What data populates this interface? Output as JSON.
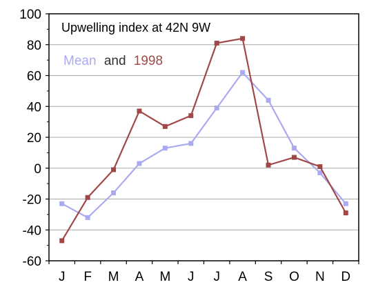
{
  "chart_data": {
    "type": "line",
    "title": "Upwelling index at 42N 9W",
    "legend_prefix": "Mean",
    "legend_joiner": "and",
    "legend_suffix": "1998",
    "legend_placement": "top-left",
    "xlabel": "",
    "ylabel": "",
    "categories": [
      "J",
      "F",
      "M",
      "A",
      "M",
      "J",
      "J",
      "A",
      "S",
      "O",
      "N",
      "D"
    ],
    "ylim": [
      -60,
      100
    ],
    "yticks": [
      -60,
      -40,
      -20,
      0,
      20,
      40,
      60,
      80,
      100
    ],
    "grid": true,
    "series": [
      {
        "name": "Mean",
        "color": "#aaaaf0",
        "values": [
          -23,
          -32,
          -16,
          3,
          13,
          16,
          39,
          62,
          44,
          13,
          -3,
          -23
        ]
      },
      {
        "name": "1998",
        "color": "#a04848",
        "values": [
          -47,
          -19,
          -1,
          37,
          27,
          34,
          81,
          84,
          2,
          7,
          1,
          -29
        ]
      }
    ]
  }
}
